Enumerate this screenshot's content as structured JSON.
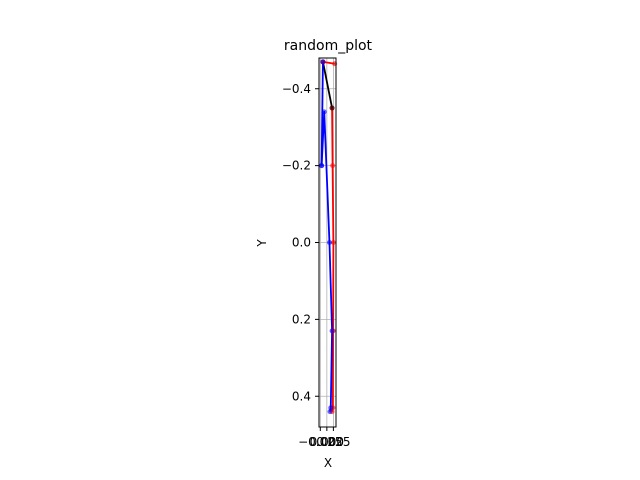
{
  "chart_data": {
    "type": "line",
    "title": "random_plot",
    "xlabel": "X",
    "ylabel": "Y",
    "x_ticks": [
      -0.025,
      0.0,
      0.025
    ],
    "x_tick_labels": [
      "−0.025",
      "0.000",
      "0.025"
    ],
    "xlim": [
      -0.03,
      0.035
    ],
    "y_ticks": [
      -0.4,
      -0.2,
      0.0,
      0.2,
      0.4
    ],
    "y_tick_labels": [
      "−0.4",
      "−0.2",
      "0.0",
      "0.2",
      "0.4"
    ],
    "ylim": [
      0.48,
      -0.48
    ],
    "y_inverted": true,
    "grid": true,
    "series": [
      {
        "color": "#ff0000",
        "x": [
          0.02,
          0.022,
          0.025,
          0.024,
          0.023,
          0.02
        ],
        "y": [
          -0.35,
          -0.2,
          0.0,
          0.23,
          0.43,
          0.44
        ]
      },
      {
        "color": "#0000ff",
        "x": [
          -0.02,
          -0.01,
          0.01,
          0.02,
          0.015,
          0.012
        ],
        "y": [
          -0.2,
          -0.34,
          0.0,
          0.23,
          0.43,
          0.44
        ]
      },
      {
        "color": "#000000",
        "x": [
          -0.015,
          0.02
        ],
        "y": [
          -0.47,
          -0.35
        ]
      },
      {
        "color": "#ff0000",
        "x": [
          -0.015,
          0.03
        ],
        "y": [
          -0.47,
          -0.465
        ]
      },
      {
        "color": "#0000ff",
        "x": [
          -0.015,
          -0.02
        ],
        "y": [
          -0.47,
          -0.2
        ]
      }
    ]
  }
}
